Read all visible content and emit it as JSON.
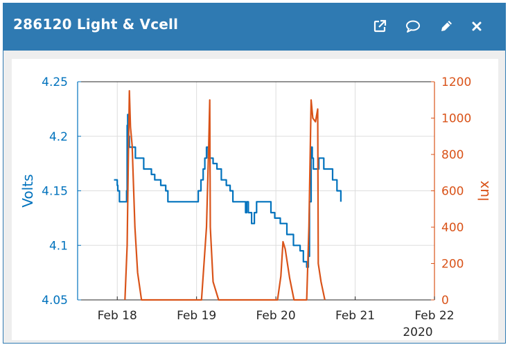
{
  "widget": {
    "title": "286120 Light & Vcell",
    "icons": [
      "external-link-icon",
      "comment-icon",
      "pencil-icon",
      "close-icon"
    ]
  },
  "chart_data": {
    "type": "line",
    "colors": {
      "volts": "#0072bd",
      "lux": "#d95319",
      "grid": "#dddddd",
      "axis": "#262626"
    },
    "xlim": [
      "2020-02-17T12:00",
      "2020-02-22T00:00"
    ],
    "x_ticks": [
      {
        "value": "2020-02-18",
        "label": "Feb 18"
      },
      {
        "value": "2020-02-19",
        "label": "Feb 19"
      },
      {
        "value": "2020-02-20",
        "label": "Feb 20"
      },
      {
        "value": "2020-02-21",
        "label": "Feb 21"
      },
      {
        "value": "2020-02-22",
        "label": "Feb 22"
      }
    ],
    "x_secondary_label": "2020",
    "y_left": {
      "label": "Volts",
      "lim": [
        4.05,
        4.25
      ],
      "ticks": [
        "4.05",
        "4.1",
        "4.15",
        "4.2",
        "4.25"
      ]
    },
    "y_right": {
      "label": "lux",
      "lim": [
        0,
        1200
      ],
      "ticks": [
        "0",
        "200",
        "400",
        "600",
        "800",
        "1000",
        "1200"
      ]
    },
    "grid": true,
    "series": [
      {
        "axis": "left",
        "style": "step",
        "points": [
          [
            "2020-02-17T23:00",
            4.16
          ],
          [
            "2020-02-18T00:00",
            4.155
          ],
          [
            "2020-02-18T00:10",
            4.15
          ],
          [
            "2020-02-18T00:40",
            4.14
          ],
          [
            "2020-02-18T02:50",
            4.15
          ],
          [
            "2020-02-18T03:00",
            4.21
          ],
          [
            "2020-02-18T03:10",
            4.22
          ],
          [
            "2020-02-18T03:20",
            4.2
          ],
          [
            "2020-02-18T03:40",
            4.19
          ],
          [
            "2020-02-18T05:30",
            4.18
          ],
          [
            "2020-02-18T08:00",
            4.17
          ],
          [
            "2020-02-18T10:20",
            4.165
          ],
          [
            "2020-02-18T11:20",
            4.16
          ],
          [
            "2020-02-18T13:10",
            4.155
          ],
          [
            "2020-02-18T14:40",
            4.15
          ],
          [
            "2020-02-18T15:20",
            4.14
          ],
          [
            "2020-02-19T00:30",
            4.15
          ],
          [
            "2020-02-19T01:20",
            4.16
          ],
          [
            "2020-02-19T02:00",
            4.17
          ],
          [
            "2020-02-19T02:30",
            4.18
          ],
          [
            "2020-02-19T03:00",
            4.19
          ],
          [
            "2020-02-19T03:30",
            4.18
          ],
          [
            "2020-02-19T05:00",
            4.175
          ],
          [
            "2020-02-19T06:10",
            4.17
          ],
          [
            "2020-02-19T07:30",
            4.16
          ],
          [
            "2020-02-19T09:00",
            4.155
          ],
          [
            "2020-02-19T10:10",
            4.15
          ],
          [
            "2020-02-19T11:00",
            4.14
          ],
          [
            "2020-02-19T14:50",
            4.13
          ],
          [
            "2020-02-19T15:10",
            4.14
          ],
          [
            "2020-02-19T15:40",
            4.13
          ],
          [
            "2020-02-19T16:40",
            4.12
          ],
          [
            "2020-02-19T17:30",
            4.13
          ],
          [
            "2020-02-19T18:10",
            4.14
          ],
          [
            "2020-02-19T22:30",
            4.13
          ],
          [
            "2020-02-19T23:40",
            4.125
          ],
          [
            "2020-02-20T01:20",
            4.12
          ],
          [
            "2020-02-20T03:20",
            4.11
          ],
          [
            "2020-02-20T05:20",
            4.1
          ],
          [
            "2020-02-20T07:20",
            4.095
          ],
          [
            "2020-02-20T08:20",
            4.085
          ],
          [
            "2020-02-20T09:20",
            4.08
          ],
          [
            "2020-02-20T09:50",
            4.09
          ],
          [
            "2020-02-20T10:10",
            4.14
          ],
          [
            "2020-02-20T10:40",
            4.19
          ],
          [
            "2020-02-20T11:00",
            4.18
          ],
          [
            "2020-02-20T11:20",
            4.17
          ],
          [
            "2020-02-20T13:00",
            4.18
          ],
          [
            "2020-02-20T14:30",
            4.17
          ],
          [
            "2020-02-20T17:10",
            4.16
          ],
          [
            "2020-02-20T18:30",
            4.15
          ],
          [
            "2020-02-20T19:40",
            4.14
          ]
        ]
      },
      {
        "axis": "right",
        "style": "line",
        "points": [
          [
            "2020-02-18T02:20",
            0
          ],
          [
            "2020-02-18T03:00",
            300
          ],
          [
            "2020-02-18T03:20",
            750
          ],
          [
            "2020-02-18T03:40",
            1150
          ],
          [
            "2020-02-18T04:00",
            950
          ],
          [
            "2020-02-18T04:30",
            850
          ],
          [
            "2020-02-18T05:20",
            400
          ],
          [
            "2020-02-18T06:10",
            150
          ],
          [
            "2020-02-18T07:20",
            0
          ],
          [
            "2020-02-19T01:30",
            0
          ],
          [
            "2020-02-19T03:00",
            400
          ],
          [
            "2020-02-19T03:40",
            850
          ],
          [
            "2020-02-19T04:00",
            1100
          ],
          [
            "2020-02-19T04:10",
            400
          ],
          [
            "2020-02-19T05:00",
            100
          ],
          [
            "2020-02-19T06:40",
            0
          ],
          [
            "2020-02-20T00:30",
            0
          ],
          [
            "2020-02-20T01:30",
            130
          ],
          [
            "2020-02-20T02:10",
            320
          ],
          [
            "2020-02-20T02:50",
            280
          ],
          [
            "2020-02-20T03:30",
            200
          ],
          [
            "2020-02-20T04:10",
            120
          ],
          [
            "2020-02-20T05:30",
            0
          ],
          [
            "2020-02-20T09:20",
            0
          ],
          [
            "2020-02-20T10:00",
            400
          ],
          [
            "2020-02-20T10:40",
            1100
          ],
          [
            "2020-02-20T11:10",
            1000
          ],
          [
            "2020-02-20T12:00",
            980
          ],
          [
            "2020-02-20T12:40",
            1050
          ],
          [
            "2020-02-20T12:50",
            200
          ],
          [
            "2020-02-20T13:40",
            100
          ],
          [
            "2020-02-20T14:50",
            0
          ]
        ]
      }
    ]
  }
}
